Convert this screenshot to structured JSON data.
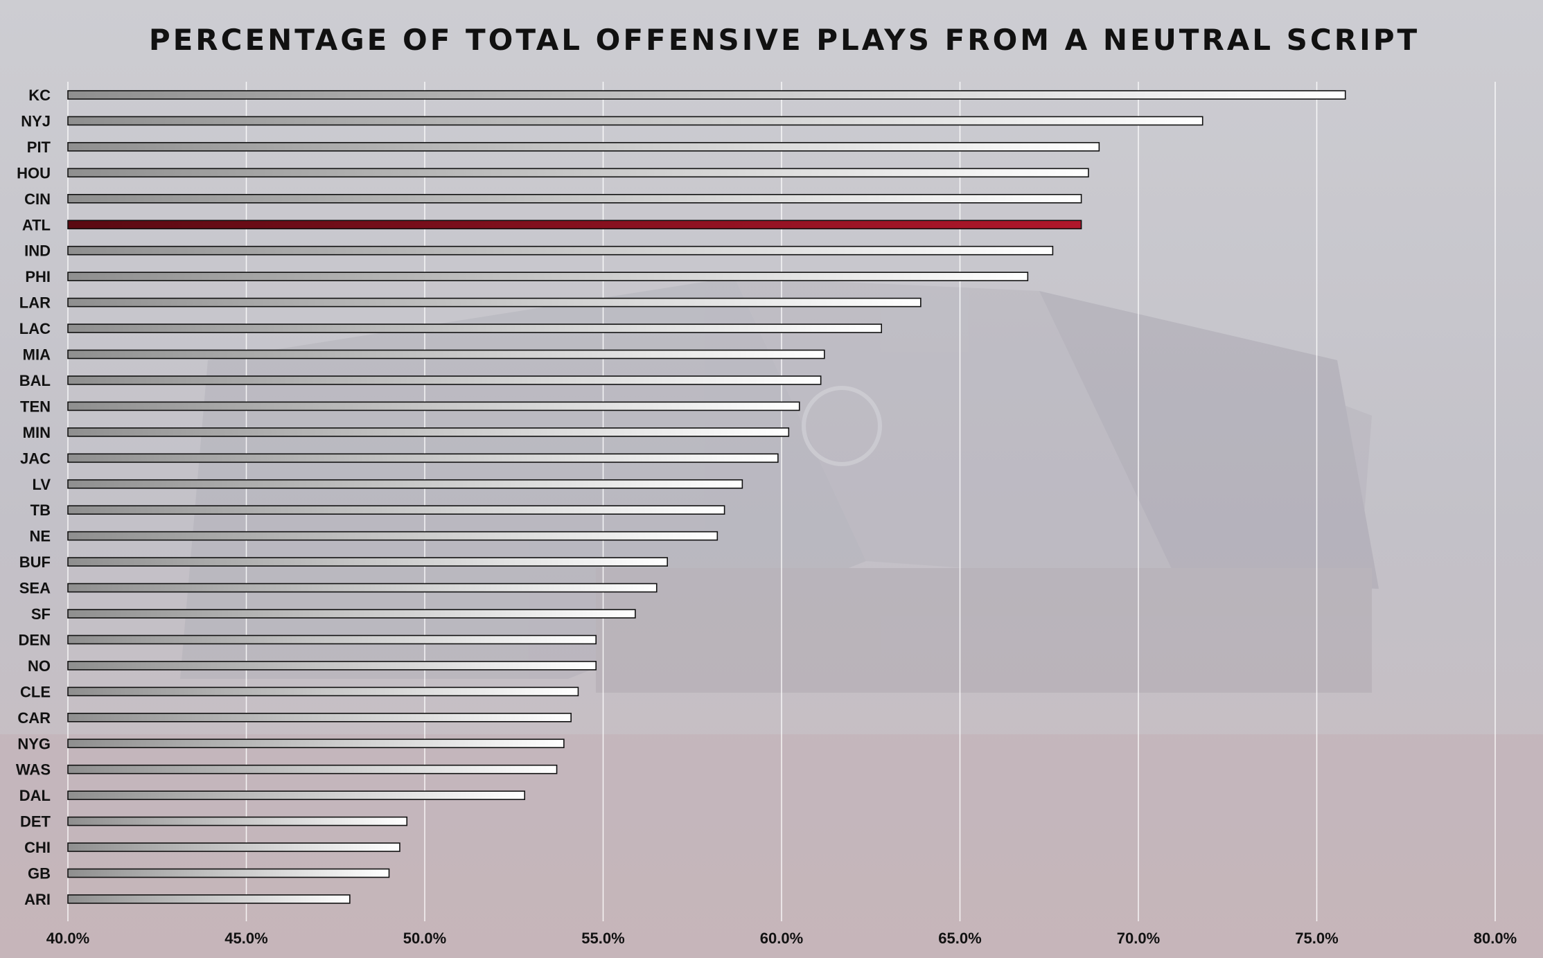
{
  "chart_data": {
    "type": "bar",
    "orientation": "horizontal",
    "title": "PERCENTAGE OF TOTAL OFFENSIVE PLAYS FROM A NEUTRAL SCRIPT",
    "categories": [
      "KC",
      "NYJ",
      "PIT",
      "HOU",
      "CIN",
      "ATL",
      "IND",
      "PHI",
      "LAR",
      "LAC",
      "MIA",
      "BAL",
      "TEN",
      "MIN",
      "JAC",
      "LV",
      "TB",
      "NE",
      "BUF",
      "SEA",
      "SF",
      "DEN",
      "NO",
      "CLE",
      "CAR",
      "NYG",
      "WAS",
      "DAL",
      "DET",
      "CHI",
      "GB",
      "ARI"
    ],
    "values": [
      75.8,
      71.8,
      68.9,
      68.6,
      68.4,
      68.4,
      67.6,
      66.9,
      63.9,
      62.8,
      61.2,
      61.1,
      60.5,
      60.2,
      59.9,
      58.9,
      58.4,
      58.2,
      56.8,
      56.5,
      55.9,
      54.8,
      54.8,
      54.3,
      54.1,
      53.9,
      53.7,
      52.8,
      49.5,
      49.3,
      49.0,
      47.9
    ],
    "highlight": "ATL",
    "xlim": [
      40.0,
      80.0
    ],
    "x_ticks": [
      "40.0%",
      "45.0%",
      "50.0%",
      "55.0%",
      "60.0%",
      "65.0%",
      "70.0%",
      "75.0%",
      "80.0%"
    ],
    "grid": "vertical",
    "colors": {
      "bar_start": "#8f8f8f",
      "bar_end": "#ffffff",
      "highlight_start": "#5a0a12",
      "highlight_end": "#b0172b",
      "grid": "#ffffff",
      "background": "#c4c4cb"
    }
  }
}
